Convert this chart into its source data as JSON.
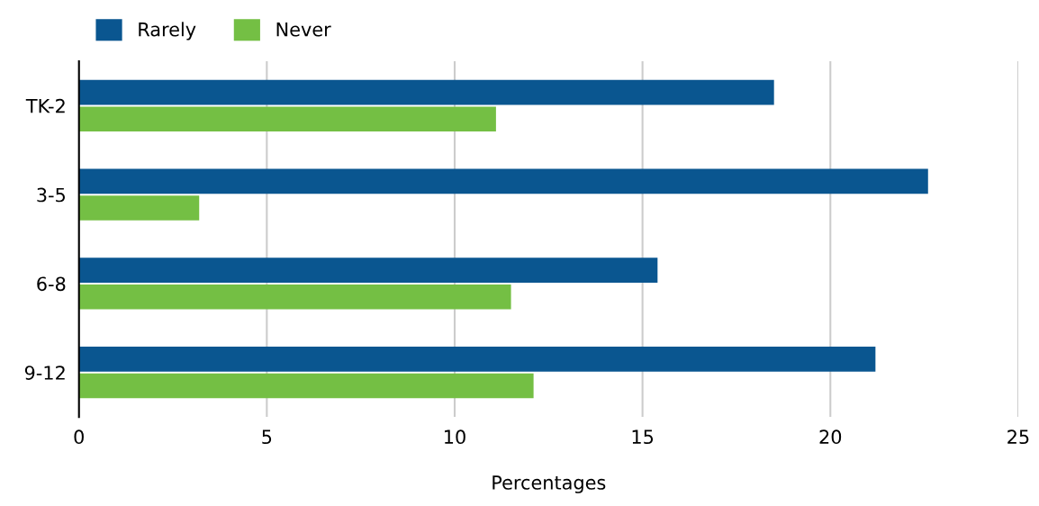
{
  "chart_data": {
    "type": "bar",
    "orientation": "horizontal",
    "xlabel": "Percentages",
    "categories": [
      "TK-2",
      "3-5",
      "6-8",
      "9-12"
    ],
    "series": [
      {
        "name": "Rarely",
        "color": "#0a5690",
        "values": [
          18.5,
          22.6,
          15.4,
          21.2
        ]
      },
      {
        "name": "Never",
        "color": "#74bf44",
        "values": [
          11.1,
          3.2,
          11.5,
          12.1
        ]
      }
    ],
    "xlim": [
      0,
      25
    ],
    "xticks": [
      0,
      5,
      10,
      15,
      20,
      25
    ],
    "grid": "x",
    "legend": "top left"
  }
}
